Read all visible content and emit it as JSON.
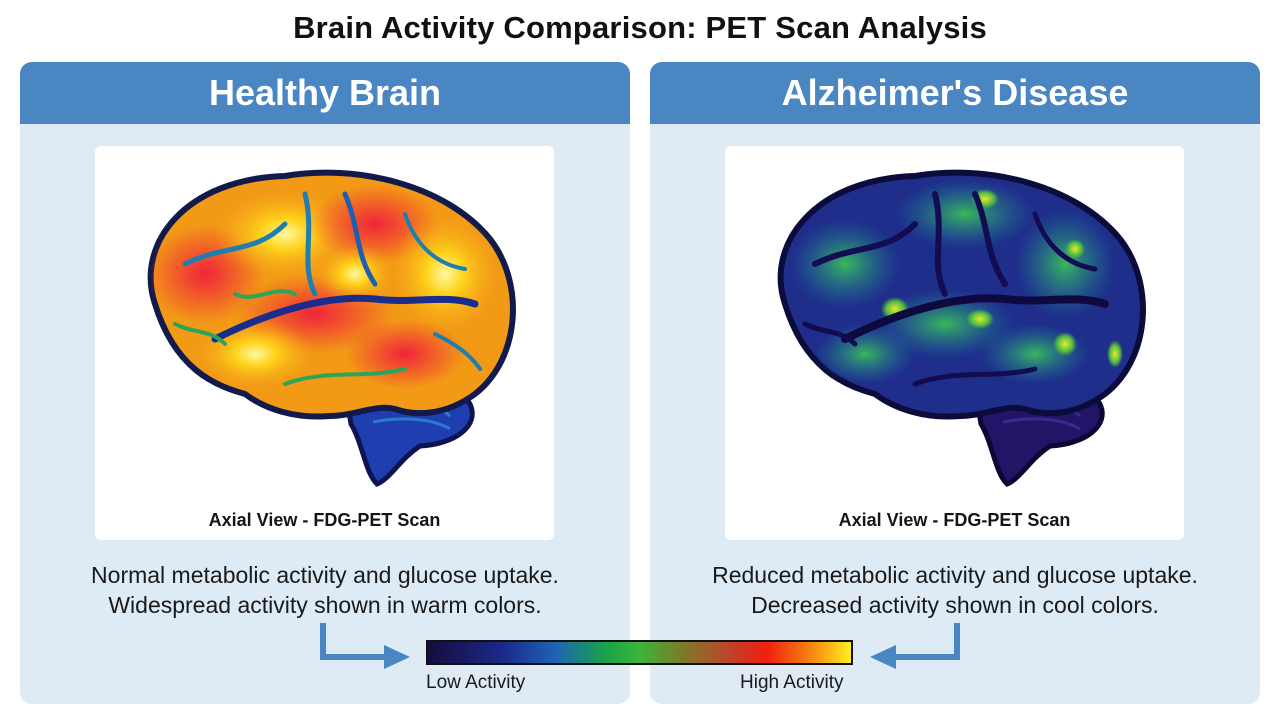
{
  "title": "Brain Activity Comparison: PET Scan Analysis",
  "panels": [
    {
      "heading": "Healthy Brain",
      "scan_caption": "Axial View - FDG-PET Scan",
      "description_line1": "Normal metabolic activity and glucose uptake.",
      "description_line2": "Widespread activity shown in warm colors.",
      "activity_level": "high"
    },
    {
      "heading": "Alzheimer's Disease",
      "scan_caption": "Axial View - FDG-PET Scan",
      "description_line1": "Reduced metabolic activity and glucose uptake.",
      "description_line2": "Decreased activity shown in cool colors.",
      "activity_level": "low"
    }
  ],
  "colorbar": {
    "low_label": "Low Activity",
    "high_label": "High Activity",
    "colors": [
      "#160d3e",
      "#1b2a8c",
      "#1d63b5",
      "#19a34a",
      "#3bb53a",
      "#7a7c2a",
      "#c2402a",
      "#f01f10",
      "#f57f10",
      "#ffef20"
    ]
  },
  "colors": {
    "header_bg": "#4a86c2",
    "panel_bg": "#deeaf4",
    "arrow": "#4a86c2"
  }
}
